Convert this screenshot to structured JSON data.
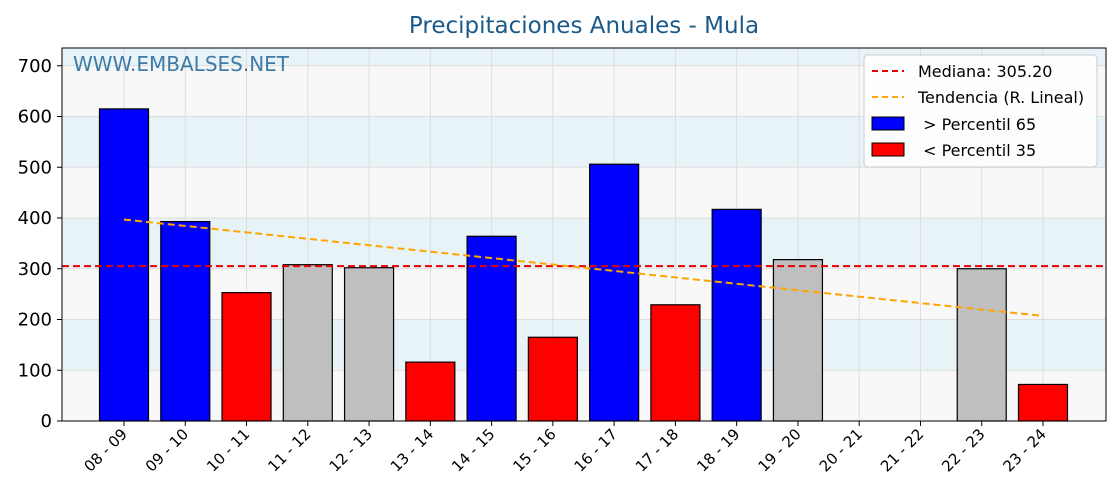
{
  "chart_data": {
    "type": "bar",
    "title": "Precipitaciones Anuales - Mula",
    "watermark": "WWW.EMBALSES.NET",
    "categories": [
      "08 - 09",
      "09 - 10",
      "10 - 11",
      "11 - 12",
      "12 - 13",
      "13 - 14",
      "14 - 15",
      "15 - 16",
      "16 - 17",
      "17 - 18",
      "18 - 19",
      "19 - 20",
      "20 - 21",
      "21 - 22",
      "22 - 23",
      "23 - 24"
    ],
    "values": [
      615,
      393,
      253,
      308,
      302,
      116,
      364,
      165,
      506,
      229,
      417,
      318,
      null,
      null,
      300,
      72
    ],
    "bar_class": [
      "high",
      "high",
      "low",
      "mid",
      "mid",
      "low",
      "high",
      "low",
      "high",
      "low",
      "high",
      "mid",
      null,
      null,
      "mid",
      "low"
    ],
    "ylim": [
      0,
      735
    ],
    "yticks": [
      0,
      100,
      200,
      300,
      400,
      500,
      600,
      700
    ],
    "xlabel": "",
    "ylabel": "",
    "median": 305.2,
    "trend": {
      "start": 397,
      "end": 207
    },
    "grid": true,
    "legend_position": "top-right",
    "legend": {
      "median_label": "Mediana: 305.20",
      "trend_label": "Tendencia (R. Lineal)",
      "high_label": " > Percentil 65",
      "low_label": " < Percentil 35"
    },
    "colors": {
      "high": "#0000ff",
      "low": "#ff0000",
      "mid": "#bfbfbf",
      "median": "#e60000",
      "trend": "#ffa500",
      "band": "#e8f3f8",
      "plot_bg": "#f8f8f8"
    }
  }
}
